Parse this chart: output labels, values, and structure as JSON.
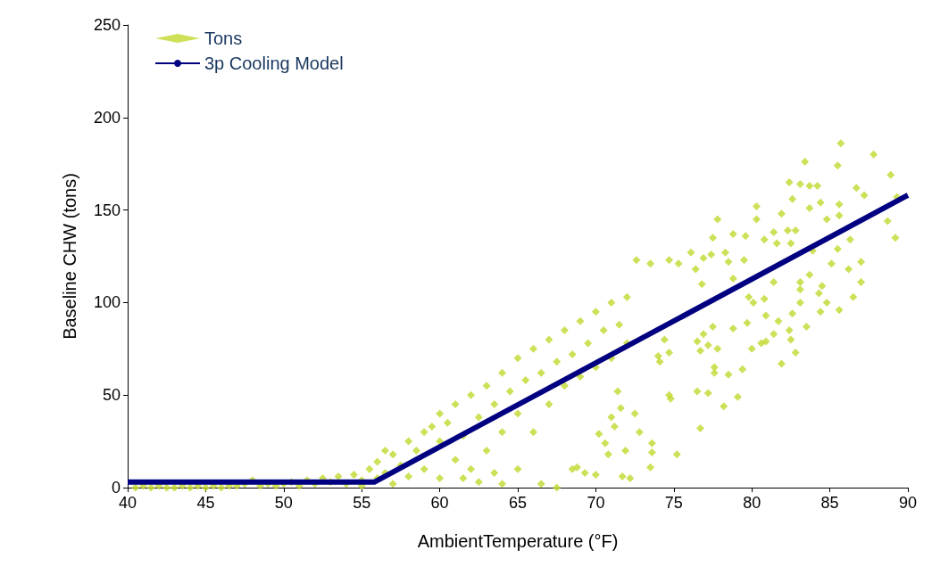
{
  "chart_data": {
    "type": "scatter",
    "xlabel": "AmbientTemperature (°F)",
    "ylabel": "Baseline CHW (tons)",
    "xlim": [
      40,
      90
    ],
    "xticks": [
      40,
      45,
      50,
      55,
      60,
      65,
      70,
      75,
      80,
      85,
      90
    ],
    "ylim": [
      0,
      250
    ],
    "yticks": [
      0,
      50,
      100,
      150,
      200,
      250
    ],
    "grid": false,
    "legend": "top left",
    "marker": "diamond",
    "series": [
      {
        "name": "Tons",
        "color": "#c2d82e",
        "x": [
          40.5,
          41,
          41.5,
          42,
          42.5,
          43,
          43.5,
          44,
          44.5,
          45,
          45.5,
          46,
          46.5,
          47,
          47.5,
          48,
          48.5,
          49,
          49.5,
          50,
          50.5,
          51,
          51.5,
          52,
          52.5,
          53,
          53.5,
          54,
          54.5,
          55,
          55.5,
          55,
          56,
          56,
          56.5,
          57,
          57,
          57.5,
          58,
          58,
          58.5,
          59,
          59,
          59.5,
          60,
          60,
          60,
          56.5,
          60.5,
          61,
          61,
          61.5,
          62,
          62,
          62.5,
          63,
          63,
          63.5,
          64,
          64,
          64.5,
          65,
          65,
          65,
          61.5,
          62.5,
          64,
          63.5,
          65.5,
          66,
          66,
          66.5,
          67,
          67,
          67.5,
          67.5,
          68,
          68,
          68.5,
          69,
          69,
          69.5,
          70,
          70,
          70.5,
          71,
          71,
          71.5,
          72,
          72,
          66.5,
          68.5,
          85.7,
          87.8,
          83.4,
          88.9,
          89.3,
          89.2,
          88.7,
          86.7,
          87.2,
          87,
          87,
          86.5,
          85.6,
          86.2,
          82.4,
          83.1,
          83.7,
          84.2,
          85.5,
          82.6,
          84.4,
          85.6,
          83.7,
          80.3,
          81.9,
          80.3,
          84.8,
          85.6,
          82.3,
          82.8,
          81.4,
          79.6,
          77.8,
          78.8,
          77.5,
          80.8,
          81.6,
          82.5,
          86.3,
          85.5,
          85.1,
          83.9,
          76.1,
          77.4,
          78.3,
          76.9,
          78.5,
          79.5,
          72.6,
          73.5,
          74.7,
          75.3,
          76.4,
          76.8,
          78.8,
          81.4,
          83.1,
          83.7,
          84.5,
          83.1,
          84.3,
          84.8,
          84.4,
          83.1,
          82.6,
          79.8,
          80.1,
          80.8,
          83.5,
          82.4,
          82.5,
          82.8,
          81.9,
          81.4,
          80.9,
          80.6,
          80,
          79.7,
          80.9,
          81.7,
          79.4,
          79.1,
          78.5,
          78.8,
          77.5,
          76.9,
          76.5,
          77.2,
          77.8,
          76.7,
          77.6,
          77.6,
          76.5,
          77.2,
          78.2,
          76.7,
          74.7,
          74.8,
          75.2,
          73.6,
          73.6,
          73.5,
          72.2,
          71.7,
          71.9,
          72.8,
          72.5,
          71.2,
          71,
          70.8,
          70.6,
          70.2,
          70,
          69.3,
          68.8,
          71.6,
          71.4,
          74,
          74.1,
          74.7,
          74.4
        ],
        "values": [
          0,
          1,
          0,
          1,
          0,
          0,
          1,
          0,
          1,
          0,
          1,
          0,
          1,
          1,
          2,
          4,
          1,
          2,
          1,
          2,
          3,
          1,
          4,
          2,
          5,
          3,
          6,
          2,
          7,
          4,
          10,
          1,
          5,
          14,
          8,
          2,
          18,
          12,
          25,
          6,
          20,
          30,
          10,
          33,
          5,
          25,
          40,
          20,
          35,
          15,
          45,
          28,
          50,
          10,
          38,
          55,
          20,
          45,
          62,
          30,
          52,
          70,
          40,
          10,
          5,
          3,
          2,
          8,
          58,
          75,
          30,
          62,
          80,
          45,
          68,
          0,
          85,
          55,
          72,
          90,
          60,
          78,
          95,
          65,
          85,
          100,
          70,
          88,
          103,
          78,
          2,
          10,
          186,
          180,
          176,
          169,
          157,
          135,
          144,
          162,
          158,
          122,
          111,
          103,
          96,
          118,
          165,
          164,
          163,
          163,
          174,
          156,
          154,
          153,
          151,
          152,
          148,
          145,
          145,
          147,
          139,
          139,
          138,
          136,
          145,
          137,
          135,
          134,
          132,
          132,
          134,
          129,
          121,
          128,
          127,
          126,
          127,
          124,
          122,
          123,
          123,
          121,
          123,
          121,
          118,
          110,
          113,
          111,
          111,
          115,
          109,
          107,
          105,
          100,
          95,
          100,
          94,
          103,
          100,
          102,
          87,
          85,
          80,
          73,
          67,
          83,
          79,
          78,
          75,
          89,
          93,
          90,
          64,
          49,
          61,
          86,
          87,
          83,
          79,
          77,
          75,
          74,
          65,
          62,
          52,
          51,
          44,
          32,
          50,
          48,
          18,
          24,
          19,
          11,
          5,
          6,
          20,
          30,
          40,
          33,
          38,
          18,
          24,
          29,
          7,
          8,
          11,
          43,
          52,
          71,
          68,
          73,
          80
        ]
      },
      {
        "name": "3p Cooling Model",
        "type": "line",
        "color": "#000080",
        "marker": "none",
        "x": [
          40,
          55.8,
          90
        ],
        "values": [
          3,
          3,
          158
        ]
      }
    ]
  }
}
